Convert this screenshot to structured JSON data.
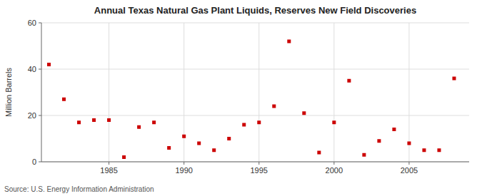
{
  "chart_data": {
    "type": "scatter",
    "title": "Annual Texas Natural Gas Plant Liquids, Reserves New Field Discoveries",
    "y_label": "Million Barrels",
    "source": "Source: U.S. Energy Information Administration",
    "x": [
      1981,
      1982,
      1983,
      1984,
      1985,
      1986,
      1987,
      1988,
      1989,
      1990,
      1991,
      1992,
      1993,
      1994,
      1995,
      1996,
      1997,
      1998,
      1999,
      2000,
      2001,
      2002,
      2003,
      2004,
      2005,
      2006,
      2007,
      2008
    ],
    "values": [
      42,
      27,
      17,
      18,
      18,
      2,
      15,
      17,
      6,
      11,
      8,
      5,
      10,
      16,
      17,
      24,
      52,
      21,
      4,
      17,
      35,
      3,
      9,
      14,
      8,
      5,
      5,
      36
    ],
    "color": "#cc0000",
    "marker": "square",
    "xlim": [
      1980.5,
      2009
    ],
    "ylim": [
      0,
      60
    ],
    "xticks": [
      1985,
      1990,
      1995,
      2000,
      2005
    ],
    "yticks": [
      0,
      20,
      40,
      60
    ],
    "grid": true
  }
}
